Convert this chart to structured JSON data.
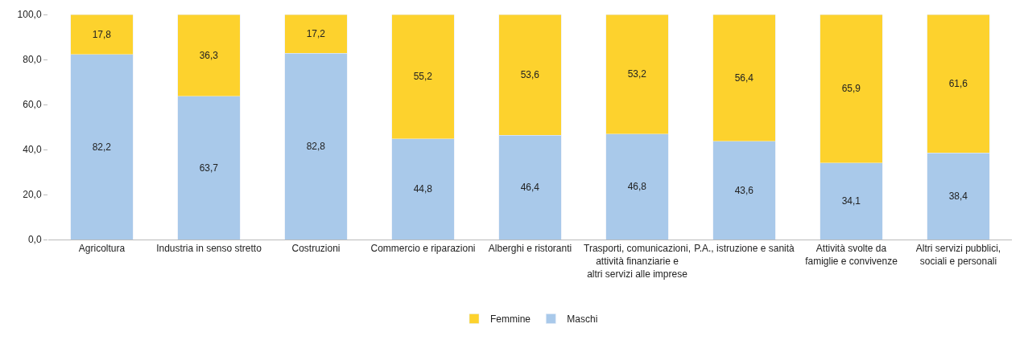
{
  "chart_data": {
    "type": "bar",
    "stacked": true,
    "categories": [
      "Agricoltura",
      "Industria in senso stretto",
      "Costruzioni",
      "Commercio e riparazioni",
      "Alberghi e ristoranti",
      "Trasporti, comunicazioni, attività finanziarie e altri servizi alle imprese",
      "P.A., istruzione e sanità",
      "Attività svolte da famiglie e convivenze",
      "Altri servizi pubblici, sociali e personali"
    ],
    "series": [
      {
        "name": "Maschi",
        "color": "#a9c9ea",
        "values": [
          82.2,
          63.7,
          82.8,
          44.8,
          46.4,
          46.8,
          43.6,
          34.1,
          38.4
        ],
        "value_labels": [
          "82,2",
          "63,7",
          "82,8",
          "44,8",
          "46,4",
          "46,8",
          "43,6",
          "34,1",
          "38,4"
        ]
      },
      {
        "name": "Femmine",
        "color": "#fdd22d",
        "values": [
          17.8,
          36.3,
          17.2,
          55.2,
          53.6,
          53.2,
          56.4,
          65.9,
          61.6
        ],
        "value_labels": [
          "17,8",
          "36,3",
          "17,2",
          "55,2",
          "53,6",
          "53,2",
          "56,4",
          "65,9",
          "61,6"
        ]
      }
    ],
    "ylim": [
      0,
      100
    ],
    "yticks": [
      {
        "value": 0,
        "label": "0,0"
      },
      {
        "value": 20,
        "label": "20,0"
      },
      {
        "value": 40,
        "label": "40,0"
      },
      {
        "value": 60,
        "label": "60,0"
      },
      {
        "value": 80,
        "label": "80,0"
      },
      {
        "value": 100,
        "label": "100,0"
      }
    ],
    "grid": false,
    "legend": "bottom"
  }
}
